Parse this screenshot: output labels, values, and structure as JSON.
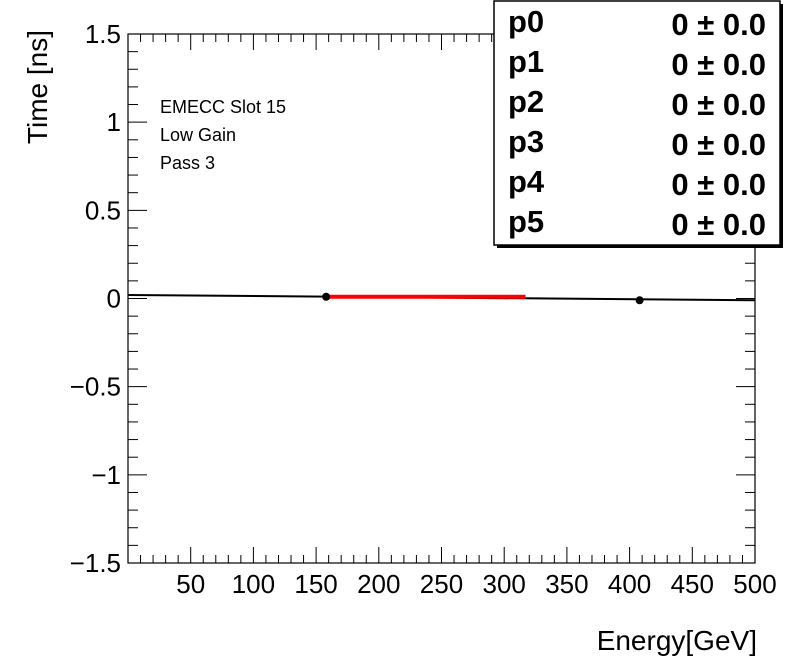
{
  "chart_data": {
    "type": "scatter",
    "title": "",
    "xlabel": "Energy[GeV]",
    "ylabel": "Time [ns]",
    "xlim": [
      0,
      500
    ],
    "ylim": [
      -1.5,
      1.5
    ],
    "x_ticks": [
      50,
      100,
      150,
      200,
      250,
      300,
      350,
      400,
      450,
      500
    ],
    "x_tick_labels": [
      "50",
      "100",
      "150",
      "200",
      "250",
      "300",
      "350",
      "400",
      "450",
      "500"
    ],
    "y_ticks": [
      -1.5,
      -1,
      -0.5,
      0,
      0.5,
      1,
      1.5
    ],
    "y_tick_labels": [
      "−1.5",
      "−1",
      "−0.5",
      "0",
      "0.5",
      "1",
      "1.5"
    ],
    "points": [
      {
        "x": 158,
        "y": 0.01
      },
      {
        "x": 408,
        "y": -0.01
      }
    ],
    "baseline": {
      "x": [
        0,
        500
      ],
      "y": [
        0.02,
        -0.01
      ],
      "color": "#000000"
    },
    "fit_line": {
      "x": [
        160,
        317
      ],
      "y": [
        0.01,
        0.01
      ],
      "color": "#ff0000"
    },
    "annotations": [
      "EMECC Slot 15",
      "Low Gain",
      "Pass 3"
    ],
    "stats": [
      {
        "name": "p0",
        "value": "0",
        "error": "0.0"
      },
      {
        "name": "p1",
        "value": "0",
        "error": "0.0"
      },
      {
        "name": "p2",
        "value": "0",
        "error": "0.0"
      },
      {
        "name": "p3",
        "value": "0",
        "error": "0.0"
      },
      {
        "name": "p4",
        "value": "0",
        "error": "0.0"
      },
      {
        "name": "p5",
        "value": "0",
        "error": "0.0"
      }
    ],
    "pm_symbol": "±",
    "grid": false
  }
}
